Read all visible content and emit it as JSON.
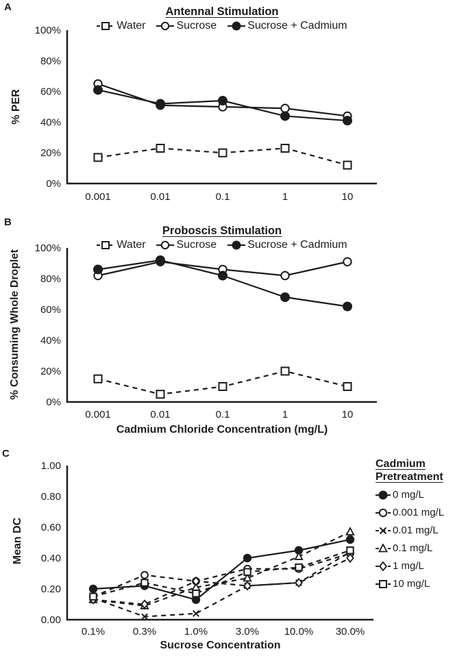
{
  "colors": {
    "ink": "#1c1c1c",
    "background": "#ffffff"
  },
  "chart_data": [
    {
      "type": "line",
      "panel": "A",
      "title": "Antennal Stimulation",
      "xlabel": "",
      "ylabel": "% PER",
      "x_type": "category",
      "categories": [
        "0.001",
        "0.01",
        "0.1",
        "1",
        "10"
      ],
      "y_ticks": [
        "0%",
        "20%",
        "40%",
        "60%",
        "80%",
        "100%"
      ],
      "ylim": [
        0,
        100
      ],
      "grid": false,
      "legend_position": "top",
      "series": [
        {
          "name": "Water",
          "marker": "square-open",
          "line": "dashed",
          "values": [
            17,
            23,
            20,
            23,
            12
          ]
        },
        {
          "name": "Sucrose",
          "marker": "circle-open",
          "line": "solid",
          "values": [
            65,
            51,
            50,
            49,
            44
          ]
        },
        {
          "name": "Sucrose + Cadmium",
          "marker": "circle-filled",
          "line": "solid",
          "values": [
            61,
            52,
            54,
            44,
            41
          ]
        }
      ]
    },
    {
      "type": "line",
      "panel": "B",
      "title": "Proboscis Stimulation",
      "xlabel": "Cadmium Chloride Concentration (mg/L)",
      "ylabel": "% Consuming Whole Droplet",
      "x_type": "category",
      "categories": [
        "0.001",
        "0.01",
        "0.1",
        "1",
        "10"
      ],
      "y_ticks": [
        "0%",
        "20%",
        "40%",
        "60%",
        "80%",
        "100%"
      ],
      "ylim": [
        0,
        100
      ],
      "grid": false,
      "legend_position": "top",
      "series": [
        {
          "name": "Water",
          "marker": "square-open",
          "line": "dashed",
          "values": [
            15,
            5,
            10,
            20,
            10
          ]
        },
        {
          "name": "Sucrose",
          "marker": "circle-open",
          "line": "solid",
          "values": [
            82,
            91,
            86,
            82,
            91
          ]
        },
        {
          "name": "Sucrose + Cadmium",
          "marker": "circle-filled",
          "line": "solid",
          "values": [
            86,
            92,
            82,
            68,
            62
          ]
        }
      ]
    },
    {
      "type": "line",
      "panel": "C",
      "title": "",
      "xlabel": "Sucrose Concentration",
      "ylabel": "Mean DC",
      "legend_title": "Cadmium Pretreatment",
      "x_type": "category",
      "categories": [
        "0.1%",
        "0.3%",
        "1.0%",
        "3.0%",
        "10.0%",
        "30.0%"
      ],
      "y_ticks": [
        "0.00",
        "0.20",
        "0.40",
        "0.60",
        "0.80",
        "1.00"
      ],
      "ylim": [
        0,
        1
      ],
      "grid": false,
      "legend_position": "right",
      "series": [
        {
          "name": "0 mg/L",
          "marker": "circle-filled",
          "line": "solid",
          "values": [
            0.2,
            0.22,
            0.13,
            0.4,
            0.45,
            0.52
          ]
        },
        {
          "name": "0.001 mg/L",
          "marker": "circle-open",
          "line": "dashed",
          "values": [
            0.15,
            0.29,
            0.25,
            0.33,
            0.33,
            0.43
          ]
        },
        {
          "name": "0.01 mg/L",
          "marker": "x",
          "line": "dashed",
          "values": [
            0.14,
            0.02,
            0.04,
            0.22,
            0.24,
            0.44
          ]
        },
        {
          "name": "0.1 mg/L",
          "marker": "triangle-open",
          "line": "dashed",
          "values": [
            0.13,
            0.09,
            0.21,
            0.27,
            0.41,
            0.57
          ]
        },
        {
          "name": "1 mg/L",
          "marker": "diamond-open",
          "line": "dashed",
          "values": [
            0.13,
            0.1,
            0.25,
            0.22,
            0.24,
            0.4
          ]
        },
        {
          "name": "10 mg/L",
          "marker": "square-open",
          "line": "dashed",
          "values": [
            0.15,
            0.24,
            0.17,
            0.31,
            0.34,
            0.45
          ]
        }
      ]
    }
  ]
}
